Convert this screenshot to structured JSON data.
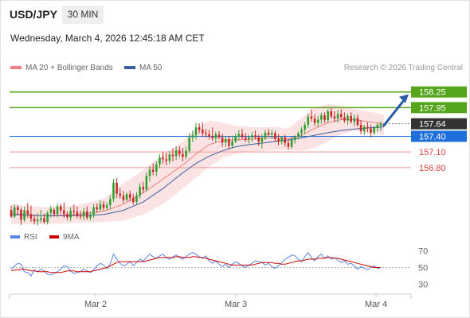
{
  "header": {
    "symbol": "USD/JPY",
    "timeframe": "30 MIN",
    "datetime": "Wednesday, March 4, 2026 12:45:18 AM CET"
  },
  "legend": {
    "ma20_label": "MA 20 + Bollinger Bands",
    "ma50_label": "MA 50",
    "credit": "Research © 2026 Trading Central"
  },
  "colors": {
    "candle_up": "#2e9e2e",
    "candle_down": "#c62828",
    "ma20": "#f08080",
    "ma50": "#3a5fa0",
    "bollinger_fill": "#fbd9d9",
    "resistance": "#55a51c",
    "pivot": "#1e6fd9",
    "support": "#f4a5a5",
    "price": "#333333",
    "rsi": "#5b86e5",
    "rsi_ma": "#cc0000",
    "arrow": "#2a5ca8"
  },
  "chart_data": [
    {
      "type": "candlestick",
      "title": "USD/JPY 30 MIN",
      "x_ticks": [
        "Mar 2",
        "Mar 3",
        "Mar 4"
      ],
      "ylim": [
        155.7,
        158.55
      ],
      "ohlc_shape": [
        [
          155.99,
          156.07,
          155.84,
          155.86
        ],
        [
          155.86,
          156.09,
          155.83,
          156.04
        ],
        [
          156.04,
          156.08,
          155.9,
          155.99
        ],
        [
          155.99,
          156.03,
          155.7,
          155.8
        ],
        [
          155.8,
          156.05,
          155.76,
          155.98
        ],
        [
          155.98,
          156.12,
          155.84,
          155.91
        ],
        [
          155.91,
          156.07,
          155.76,
          155.82
        ],
        [
          155.82,
          155.89,
          155.71,
          155.77
        ],
        [
          155.77,
          155.93,
          155.69,
          155.8
        ],
        [
          155.8,
          155.99,
          155.74,
          155.83
        ],
        [
          155.83,
          155.92,
          155.72,
          155.76
        ],
        [
          155.76,
          155.97,
          155.71,
          155.93
        ],
        [
          155.93,
          156.07,
          155.84,
          156.01
        ],
        [
          155.99,
          156.03,
          155.86,
          155.91
        ],
        [
          155.91,
          156.11,
          155.85,
          156.06
        ],
        [
          156.06,
          156.11,
          155.92,
          155.98
        ],
        [
          155.98,
          156.13,
          155.84,
          155.91
        ],
        [
          155.91,
          155.96,
          155.8,
          155.85
        ],
        [
          155.84,
          156.04,
          155.78,
          155.97
        ],
        [
          155.97,
          156.09,
          155.88,
          155.95
        ],
        [
          155.95,
          156.05,
          155.83,
          155.88
        ],
        [
          155.88,
          155.97,
          155.81,
          155.86
        ],
        [
          155.86,
          156.03,
          155.79,
          155.96
        ],
        [
          155.96,
          156.06,
          155.8,
          155.84
        ],
        [
          155.84,
          155.96,
          155.79,
          155.88
        ],
        [
          155.88,
          156.1,
          155.83,
          156.04
        ],
        [
          156.04,
          156.11,
          155.93,
          156.0
        ],
        [
          156.0,
          156.18,
          155.96,
          156.1
        ],
        [
          156.1,
          156.16,
          155.97,
          156.03
        ],
        [
          156.03,
          156.14,
          155.99,
          156.08
        ],
        [
          156.08,
          156.27,
          156.0,
          156.2
        ],
        [
          156.2,
          156.58,
          156.14,
          156.51
        ],
        [
          156.51,
          156.6,
          156.22,
          156.3
        ],
        [
          156.3,
          156.41,
          156.2,
          156.26
        ],
        [
          156.26,
          156.35,
          156.12,
          156.18
        ],
        [
          156.18,
          156.33,
          156.15,
          156.29
        ],
        [
          156.29,
          156.36,
          156.15,
          156.22
        ],
        [
          156.22,
          156.3,
          156.09,
          156.14
        ],
        [
          156.14,
          156.33,
          156.1,
          156.26
        ],
        [
          156.26,
          156.5,
          156.2,
          156.43
        ],
        [
          156.43,
          156.53,
          156.31,
          156.38
        ],
        [
          156.38,
          156.71,
          156.34,
          156.64
        ],
        [
          156.64,
          156.83,
          156.53,
          156.76
        ],
        [
          156.76,
          156.88,
          156.65,
          156.72
        ],
        [
          156.72,
          156.92,
          156.64,
          156.86
        ],
        [
          156.86,
          157.06,
          156.79,
          156.99
        ],
        [
          156.99,
          157.11,
          156.88,
          156.96
        ],
        [
          156.96,
          157.08,
          156.85,
          156.93
        ],
        [
          156.93,
          157.12,
          156.87,
          157.05
        ],
        [
          157.05,
          157.17,
          156.92,
          157.02
        ],
        [
          157.02,
          157.21,
          156.95,
          157.13
        ],
        [
          157.13,
          157.21,
          157.0,
          157.06
        ],
        [
          157.06,
          157.18,
          156.92,
          157.01
        ],
        [
          157.01,
          157.2,
          156.96,
          157.12
        ],
        [
          157.12,
          157.46,
          157.08,
          157.38
        ],
        [
          157.38,
          157.51,
          157.29,
          157.42
        ],
        [
          157.42,
          157.65,
          157.34,
          157.57
        ],
        [
          157.57,
          157.65,
          157.46,
          157.52
        ],
        [
          157.53,
          157.67,
          157.39,
          157.46
        ],
        [
          157.46,
          157.54,
          157.38,
          157.44
        ],
        [
          157.44,
          157.52,
          157.34,
          157.4
        ],
        [
          157.4,
          157.57,
          157.31,
          157.36
        ],
        [
          157.36,
          157.49,
          157.28,
          157.44
        ],
        [
          157.43,
          157.5,
          157.34,
          157.38
        ],
        [
          157.38,
          157.45,
          157.2,
          157.28
        ],
        [
          157.28,
          157.4,
          157.2,
          157.35
        ],
        [
          157.35,
          157.4,
          157.15,
          157.22
        ],
        [
          157.22,
          157.41,
          157.17,
          157.3
        ],
        [
          157.3,
          157.45,
          157.27,
          157.4
        ],
        [
          157.4,
          157.52,
          157.32,
          157.44
        ],
        [
          157.44,
          157.54,
          157.35,
          157.38
        ],
        [
          157.38,
          157.46,
          157.29,
          157.34
        ],
        [
          157.34,
          157.43,
          157.26,
          157.38
        ],
        [
          157.38,
          157.48,
          157.3,
          157.42
        ],
        [
          157.42,
          157.51,
          157.34,
          157.38
        ],
        [
          157.38,
          157.43,
          157.22,
          157.3
        ],
        [
          157.29,
          157.44,
          157.17,
          157.37
        ],
        [
          157.37,
          157.52,
          157.33,
          157.47
        ],
        [
          157.47,
          157.54,
          157.39,
          157.43
        ],
        [
          157.43,
          157.52,
          157.35,
          157.46
        ],
        [
          157.46,
          157.5,
          157.3,
          157.35
        ],
        [
          157.35,
          157.44,
          157.23,
          157.3
        ],
        [
          157.3,
          157.4,
          157.24,
          157.38
        ],
        [
          157.38,
          157.43,
          157.2,
          157.27
        ],
        [
          157.27,
          157.34,
          157.14,
          157.2
        ],
        [
          157.2,
          157.39,
          157.16,
          157.33
        ],
        [
          157.33,
          157.42,
          157.26,
          157.39
        ],
        [
          157.39,
          157.49,
          157.34,
          157.46
        ],
        [
          157.46,
          157.58,
          157.38,
          157.53
        ],
        [
          157.53,
          157.67,
          157.45,
          157.62
        ],
        [
          157.62,
          157.84,
          157.56,
          157.78
        ],
        [
          157.78,
          157.92,
          157.68,
          157.74
        ],
        [
          157.74,
          157.82,
          157.6,
          157.66
        ],
        [
          157.66,
          157.79,
          157.58,
          157.72
        ],
        [
          157.72,
          157.85,
          157.64,
          157.8
        ],
        [
          157.8,
          157.86,
          157.66,
          157.71
        ],
        [
          157.71,
          157.92,
          157.66,
          157.88
        ],
        [
          157.88,
          157.95,
          157.74,
          157.78
        ],
        [
          157.78,
          157.88,
          157.67,
          157.74
        ],
        [
          157.74,
          157.9,
          157.66,
          157.83
        ],
        [
          157.83,
          157.92,
          157.72,
          157.77
        ],
        [
          157.77,
          157.86,
          157.66,
          157.7
        ],
        [
          157.7,
          157.84,
          157.62,
          157.79
        ],
        [
          157.79,
          157.86,
          157.64,
          157.68
        ],
        [
          157.68,
          157.82,
          157.6,
          157.75
        ],
        [
          157.75,
          157.82,
          157.58,
          157.62
        ],
        [
          157.62,
          157.71,
          157.44,
          157.5
        ],
        [
          157.5,
          157.62,
          157.42,
          157.58
        ],
        [
          157.58,
          157.67,
          157.48,
          157.55
        ],
        [
          157.55,
          157.62,
          157.38,
          157.47
        ],
        [
          157.47,
          157.6,
          157.42,
          157.56
        ],
        [
          157.56,
          157.66,
          157.49,
          157.62
        ],
        [
          157.6,
          157.68,
          157.5,
          157.64
        ]
      ],
      "ma20_shape": [
        [
          0,
          155.92
        ],
        [
          10,
          155.88
        ],
        [
          20,
          155.9
        ],
        [
          28,
          155.96
        ],
        [
          34,
          156.1
        ],
        [
          40,
          156.32
        ],
        [
          46,
          156.58
        ],
        [
          52,
          156.85
        ],
        [
          56,
          157.06
        ],
        [
          60,
          157.24
        ],
        [
          64,
          157.32
        ],
        [
          68,
          157.33
        ],
        [
          72,
          157.34
        ],
        [
          76,
          157.36
        ],
        [
          80,
          157.37
        ],
        [
          84,
          157.35
        ],
        [
          88,
          157.42
        ],
        [
          92,
          157.55
        ],
        [
          96,
          157.66
        ],
        [
          100,
          157.72
        ],
        [
          104,
          157.72
        ],
        [
          108,
          157.68
        ],
        [
          113,
          157.64
        ]
      ],
      "ma50_shape": [
        [
          0,
          155.9
        ],
        [
          10,
          155.88
        ],
        [
          20,
          155.88
        ],
        [
          28,
          155.9
        ],
        [
          34,
          155.98
        ],
        [
          40,
          156.14
        ],
        [
          46,
          156.4
        ],
        [
          52,
          156.7
        ],
        [
          56,
          156.88
        ],
        [
          60,
          157.02
        ],
        [
          64,
          157.12
        ],
        [
          68,
          157.2
        ],
        [
          72,
          157.24
        ],
        [
          76,
          157.27
        ],
        [
          80,
          157.3
        ],
        [
          84,
          157.33
        ],
        [
          88,
          157.37
        ],
        [
          92,
          157.42
        ],
        [
          96,
          157.47
        ],
        [
          100,
          157.51
        ],
        [
          104,
          157.54
        ],
        [
          108,
          157.56
        ],
        [
          113,
          157.58
        ]
      ],
      "bb_upper_shape": [
        [
          0,
          156.1
        ],
        [
          10,
          156.04
        ],
        [
          20,
          156.08
        ],
        [
          28,
          156.2
        ],
        [
          34,
          156.5
        ],
        [
          40,
          156.75
        ],
        [
          46,
          157.05
        ],
        [
          52,
          157.3
        ],
        [
          56,
          157.55
        ],
        [
          60,
          157.7
        ],
        [
          64,
          157.66
        ],
        [
          68,
          157.6
        ],
        [
          72,
          157.58
        ],
        [
          76,
          157.57
        ],
        [
          80,
          157.58
        ],
        [
          84,
          157.55
        ],
        [
          88,
          157.75
        ],
        [
          92,
          157.95
        ],
        [
          96,
          158.02
        ],
        [
          100,
          157.99
        ],
        [
          104,
          157.92
        ],
        [
          108,
          157.88
        ],
        [
          113,
          157.82
        ]
      ],
      "bb_lower_shape": [
        [
          0,
          155.72
        ],
        [
          10,
          155.72
        ],
        [
          20,
          155.74
        ],
        [
          28,
          155.76
        ],
        [
          34,
          155.78
        ],
        [
          40,
          155.9
        ],
        [
          46,
          156.1
        ],
        [
          52,
          156.4
        ],
        [
          56,
          156.6
        ],
        [
          60,
          156.82
        ],
        [
          64,
          156.98
        ],
        [
          68,
          157.06
        ],
        [
          72,
          157.1
        ],
        [
          76,
          157.12
        ],
        [
          80,
          157.14
        ],
        [
          84,
          157.14
        ],
        [
          88,
          157.12
        ],
        [
          92,
          157.18
        ],
        [
          96,
          157.3
        ],
        [
          100,
          157.44
        ],
        [
          104,
          157.5
        ],
        [
          108,
          157.46
        ],
        [
          113,
          157.42
        ]
      ],
      "levels": {
        "resistance": [
          158.25,
          157.95
        ],
        "pivot": 157.4,
        "support": [
          157.1,
          156.8
        ],
        "last_price": 157.64
      },
      "level_labels": {
        "r2": "158.25",
        "r1": "157.95",
        "last": "157.64",
        "pivot": "157.40",
        "s1": "157.10",
        "s2": "156.80"
      },
      "forecast": {
        "direction": "up",
        "target": 158.25
      }
    },
    {
      "type": "line",
      "title": "RSI",
      "ylim": [
        20,
        80
      ],
      "y_ticks": [
        70,
        50,
        30
      ],
      "y_tick_labels": [
        "70",
        "50",
        "30"
      ],
      "rsi_label": "RSI",
      "rsi_ma_label": "9MA",
      "rsi_shape": [
        48,
        52,
        55,
        54,
        45,
        44,
        40,
        47,
        45,
        48,
        46,
        42,
        41,
        43,
        45,
        48,
        52,
        51,
        46,
        43,
        44,
        45,
        48,
        46,
        44,
        47,
        52,
        55,
        53,
        49,
        54,
        66,
        60,
        55,
        52,
        54,
        57,
        52,
        56,
        60,
        58,
        62,
        66,
        63,
        61,
        64,
        66,
        62,
        60,
        63,
        65,
        62,
        60,
        63,
        66,
        68,
        66,
        63,
        61,
        64,
        58,
        55,
        58,
        54,
        51,
        54,
        50,
        54,
        57,
        55,
        52,
        50,
        53,
        55,
        58,
        57,
        56,
        53,
        55,
        51,
        49,
        52,
        56,
        60,
        62,
        65,
        64,
        60,
        57,
        63,
        68,
        62,
        58,
        63,
        66,
        61,
        64,
        60,
        62,
        59,
        56,
        58,
        54,
        55,
        52,
        48,
        51,
        49,
        47,
        50,
        52,
        49,
        50
      ],
      "rsi_ma_shape": [
        46,
        47,
        47,
        48,
        48,
        47,
        46,
        46,
        45,
        45,
        45,
        45,
        44,
        44,
        44,
        44,
        45,
        46,
        46,
        46,
        45,
        45,
        45,
        45,
        45,
        46,
        47,
        48,
        49,
        50,
        52,
        54,
        56,
        57,
        57,
        57,
        57,
        57,
        57,
        57,
        57,
        58,
        59,
        60,
        61,
        62,
        62,
        62,
        62,
        62,
        63,
        63,
        62,
        62,
        62,
        63,
        63,
        62,
        62,
        61,
        60,
        59,
        58,
        57,
        56,
        55,
        54,
        53,
        53,
        53,
        53,
        53,
        53,
        53,
        54,
        55,
        56,
        56,
        56,
        56,
        55,
        55,
        54,
        54,
        55,
        56,
        57,
        58,
        58,
        59,
        60,
        60,
        60,
        61,
        61,
        61,
        62,
        62,
        61,
        61,
        60,
        59,
        58,
        57,
        56,
        55,
        54,
        53,
        52,
        51,
        50,
        50,
        50
      ]
    }
  ]
}
